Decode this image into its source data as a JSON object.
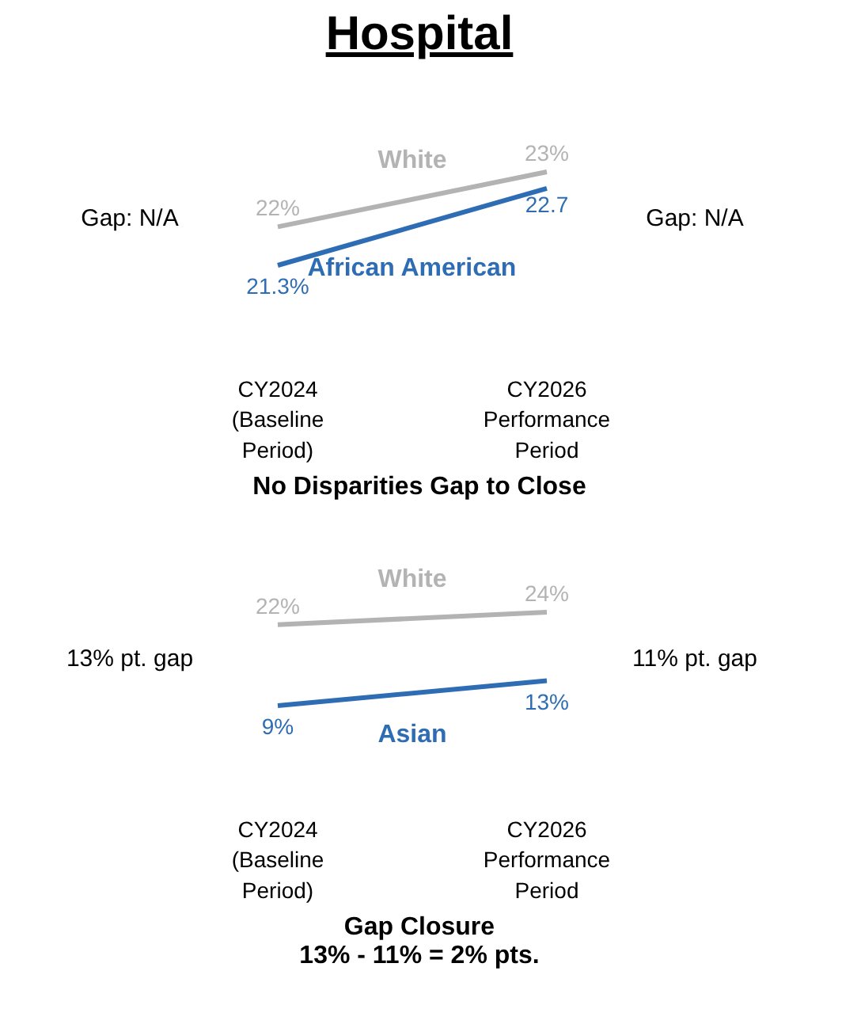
{
  "chart_data": [
    {
      "type": "line",
      "title": "Hospital",
      "categories": [
        "CY2024\n(Baseline\nPeriod)",
        "CY2026\nPerformance\nPeriod"
      ],
      "series": [
        {
          "name": "White",
          "color": "#b3b3b3",
          "values": [
            22,
            23
          ],
          "value_labels": [
            "22%",
            "23%"
          ]
        },
        {
          "name": "African American",
          "color": "#2e6db4",
          "values": [
            21.3,
            22.7
          ],
          "value_labels": [
            "21.3%",
            "22.7"
          ]
        }
      ],
      "annotations": [
        "Gap: N/A",
        "Gap: N/A",
        "No Disparities Gap to Close"
      ],
      "grid": false,
      "tick_labels": "x",
      "marker": "none",
      "line_style": "solid"
    },
    {
      "type": "line",
      "categories": [
        "CY2024\n(Baseline\nPeriod)",
        "CY2026\nPerformance\nPeriod"
      ],
      "series": [
        {
          "name": "White",
          "color": "#b3b3b3",
          "values": [
            22,
            24
          ],
          "value_labels": [
            "22%",
            "24%"
          ]
        },
        {
          "name": "Asian",
          "color": "#2e6db4",
          "values": [
            9,
            13
          ],
          "value_labels": [
            "9%",
            "13%"
          ]
        }
      ],
      "annotations": [
        "13% pt. gap",
        "11% pt. gap",
        "Gap Closure",
        "13% - 11% = 2% pts."
      ],
      "grid": false,
      "tick_labels": "x",
      "marker": "none",
      "line_style": "solid"
    }
  ]
}
